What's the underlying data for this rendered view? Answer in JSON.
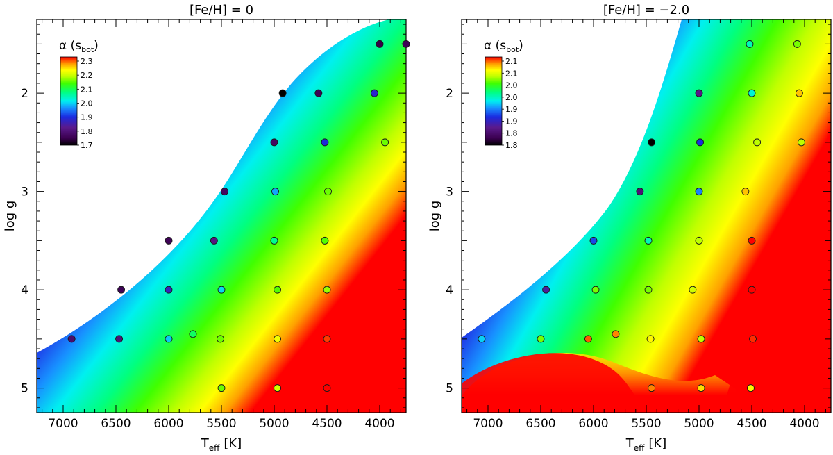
{
  "chart_data": [
    {
      "type": "heatmap",
      "title": "[Fe/H] = 0",
      "xlabel": {
        "main": "T",
        "sub": "eff",
        "unit": "[K]"
      },
      "ylabel": "log g",
      "xlim": [
        7250,
        3750
      ],
      "ylim": [
        5.25,
        1.25
      ],
      "x_ticks": [
        7000,
        6500,
        6000,
        5500,
        5000,
        4500,
        4000
      ],
      "x_tick_labels": [
        "7000",
        "6500",
        "6000",
        "5500",
        "5000",
        "4500",
        "4000"
      ],
      "y_ticks": [
        2,
        3,
        4,
        5
      ],
      "y_tick_labels": [
        "2",
        "3",
        "4",
        "5"
      ],
      "colorbar": {
        "title": {
          "main": "α (s",
          "sub": "bot",
          "end": ")"
        },
        "min": 1.7,
        "max": 2.3,
        "labels": [
          "2.3",
          "2.2",
          "2.1",
          "2.0",
          "1.9",
          "1.8",
          "1.7"
        ],
        "placement": "top-left"
      },
      "colorscale": [
        "#000000",
        "#3b0050",
        "#5a1a8c",
        "#1a2ae0",
        "#1890ff",
        "#00f0f0",
        "#00ff80",
        "#40ff00",
        "#c0ff00",
        "#ffff00",
        "#ffa000",
        "#ff0000"
      ],
      "points": [
        {
          "teff": 4000,
          "logg": 1.5,
          "alpha": 1.75
        },
        {
          "teff": 3750,
          "logg": 1.5,
          "alpha": 1.76
        },
        {
          "teff": 4920,
          "logg": 2.0,
          "alpha": 1.7
        },
        {
          "teff": 4580,
          "logg": 2.0,
          "alpha": 1.76
        },
        {
          "teff": 4050,
          "logg": 2.0,
          "alpha": 1.85
        },
        {
          "teff": 5000,
          "logg": 2.5,
          "alpha": 1.77
        },
        {
          "teff": 4520,
          "logg": 2.5,
          "alpha": 1.86
        },
        {
          "teff": 3950,
          "logg": 2.5,
          "alpha": 2.1
        },
        {
          "teff": 5470,
          "logg": 3.0,
          "alpha": 1.77
        },
        {
          "teff": 4990,
          "logg": 3.0,
          "alpha": 1.93
        },
        {
          "teff": 4490,
          "logg": 3.0,
          "alpha": 2.1
        },
        {
          "teff": 6000,
          "logg": 3.5,
          "alpha": 1.76
        },
        {
          "teff": 5570,
          "logg": 3.5,
          "alpha": 1.8
        },
        {
          "teff": 5000,
          "logg": 3.5,
          "alpha": 2.02
        },
        {
          "teff": 4520,
          "logg": 3.5,
          "alpha": 2.09
        },
        {
          "teff": 6450,
          "logg": 4.0,
          "alpha": 1.76
        },
        {
          "teff": 6000,
          "logg": 4.0,
          "alpha": 1.84
        },
        {
          "teff": 5500,
          "logg": 4.0,
          "alpha": 1.96
        },
        {
          "teff": 4970,
          "logg": 4.0,
          "alpha": 2.09
        },
        {
          "teff": 4500,
          "logg": 4.0,
          "alpha": 2.12
        },
        {
          "teff": 6920,
          "logg": 4.5,
          "alpha": 1.78
        },
        {
          "teff": 6470,
          "logg": 4.5,
          "alpha": 1.79
        },
        {
          "teff": 6000,
          "logg": 4.5,
          "alpha": 1.95
        },
        {
          "teff": 5770,
          "logg": 4.45,
          "alpha": 2.04
        },
        {
          "teff": 5510,
          "logg": 4.5,
          "alpha": 2.1
        },
        {
          "teff": 4970,
          "logg": 4.5,
          "alpha": 2.18
        },
        {
          "teff": 4500,
          "logg": 4.5,
          "alpha": 2.28
        },
        {
          "teff": 5500,
          "logg": 5.0,
          "alpha": 2.1
        },
        {
          "teff": 4970,
          "logg": 5.0,
          "alpha": 2.15
        },
        {
          "teff": 4500,
          "logg": 5.0,
          "alpha": 2.3
        }
      ]
    },
    {
      "type": "heatmap",
      "title": "[Fe/H] = −2.0",
      "xlabel": {
        "main": "T",
        "sub": "eff",
        "unit": "[K]"
      },
      "ylabel": "log g",
      "xlim": [
        7250,
        3750
      ],
      "ylim": [
        5.25,
        1.25
      ],
      "x_ticks": [
        7000,
        6500,
        6000,
        5500,
        5000,
        4500,
        4000
      ],
      "x_tick_labels": [
        "7000",
        "6500",
        "6000",
        "5500",
        "5000",
        "4500",
        "4000"
      ],
      "y_ticks": [
        2,
        3,
        4,
        5
      ],
      "y_tick_labels": [
        "2",
        "3",
        "4",
        "5"
      ],
      "colorbar": {
        "title": {
          "main": "α (s",
          "sub": "bot",
          "end": ")"
        },
        "min": 1.75,
        "max": 2.15,
        "labels": [
          "2.1",
          "2.1",
          "2.0",
          "2.0",
          "1.9",
          "1.9",
          "1.8",
          "1.8"
        ],
        "placement": "top-left"
      },
      "colorscale": [
        "#000000",
        "#3b0050",
        "#5a1a8c",
        "#1a2ae0",
        "#1890ff",
        "#00f0f0",
        "#00ff80",
        "#40ff00",
        "#c0ff00",
        "#ffff00",
        "#ffa000",
        "#ff0000"
      ],
      "points": [
        {
          "teff": 4520,
          "logg": 1.5,
          "alpha": 1.95
        },
        {
          "teff": 4070,
          "logg": 1.5,
          "alpha": 2.02
        },
        {
          "teff": 5000,
          "logg": 2.0,
          "alpha": 1.82
        },
        {
          "teff": 4500,
          "logg": 2.0,
          "alpha": 1.94
        },
        {
          "teff": 4050,
          "logg": 2.0,
          "alpha": 2.1
        },
        {
          "teff": 5450,
          "logg": 2.5,
          "alpha": 1.75
        },
        {
          "teff": 4990,
          "logg": 2.5,
          "alpha": 1.86
        },
        {
          "teff": 4450,
          "logg": 2.5,
          "alpha": 2.04
        },
        {
          "teff": 4030,
          "logg": 2.5,
          "alpha": 2.04
        },
        {
          "teff": 5560,
          "logg": 3.0,
          "alpha": 1.81
        },
        {
          "teff": 5000,
          "logg": 3.0,
          "alpha": 1.89
        },
        {
          "teff": 4560,
          "logg": 3.0,
          "alpha": 2.1
        },
        {
          "teff": 6000,
          "logg": 3.5,
          "alpha": 1.87
        },
        {
          "teff": 5480,
          "logg": 3.5,
          "alpha": 1.95
        },
        {
          "teff": 5000,
          "logg": 3.5,
          "alpha": 2.04
        },
        {
          "teff": 4500,
          "logg": 3.5,
          "alpha": 2.15
        },
        {
          "teff": 6450,
          "logg": 4.0,
          "alpha": 1.83
        },
        {
          "teff": 5980,
          "logg": 4.0,
          "alpha": 2.02
        },
        {
          "teff": 5480,
          "logg": 4.0,
          "alpha": 2.02
        },
        {
          "teff": 5060,
          "logg": 4.0,
          "alpha": 2.05
        },
        {
          "teff": 4500,
          "logg": 4.0,
          "alpha": 2.15
        },
        {
          "teff": 7060,
          "logg": 4.5,
          "alpha": 1.92
        },
        {
          "teff": 6500,
          "logg": 4.5,
          "alpha": 2.02
        },
        {
          "teff": 6050,
          "logg": 4.5,
          "alpha": 2.13
        },
        {
          "teff": 5790,
          "logg": 4.45,
          "alpha": 2.12
        },
        {
          "teff": 5460,
          "logg": 4.5,
          "alpha": 2.08
        },
        {
          "teff": 4980,
          "logg": 4.5,
          "alpha": 2.04
        },
        {
          "teff": 4490,
          "logg": 4.5,
          "alpha": 2.14
        },
        {
          "teff": 5450,
          "logg": 5.0,
          "alpha": 2.12
        },
        {
          "teff": 4980,
          "logg": 5.0,
          "alpha": 2.09
        },
        {
          "teff": 4510,
          "logg": 5.0,
          "alpha": 2.08
        }
      ]
    }
  ]
}
